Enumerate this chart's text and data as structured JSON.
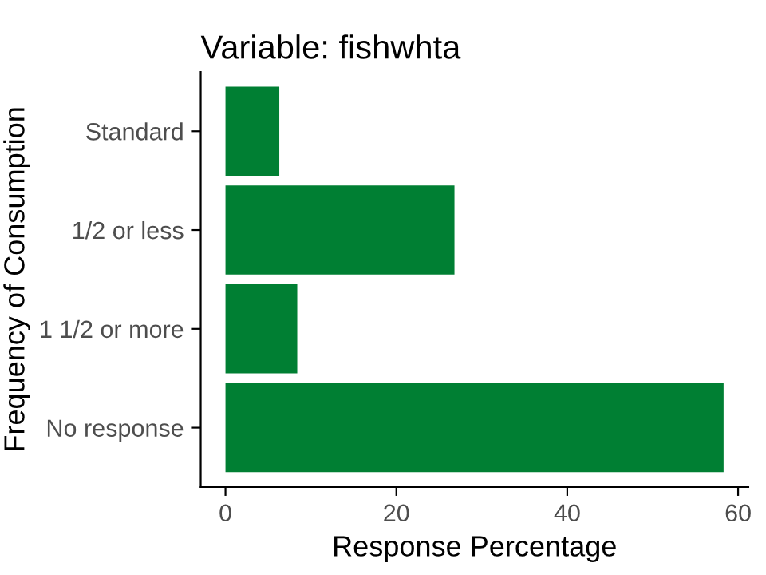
{
  "chart_data": {
    "type": "bar",
    "orientation": "horizontal",
    "title": "Variable: fishwhta",
    "xlabel": "Response Percentage",
    "ylabel": "Frequency of Consumption",
    "categories": [
      "Standard",
      "1/2 or less",
      "1 1/2 or more",
      "No response"
    ],
    "values": [
      6.3,
      26.8,
      8.4,
      58.3
    ],
    "color": "#007f33",
    "xlim": [
      -2.9,
      61.2
    ],
    "xticks": [
      0,
      20,
      40,
      60
    ],
    "grid": false,
    "legend": false
  }
}
